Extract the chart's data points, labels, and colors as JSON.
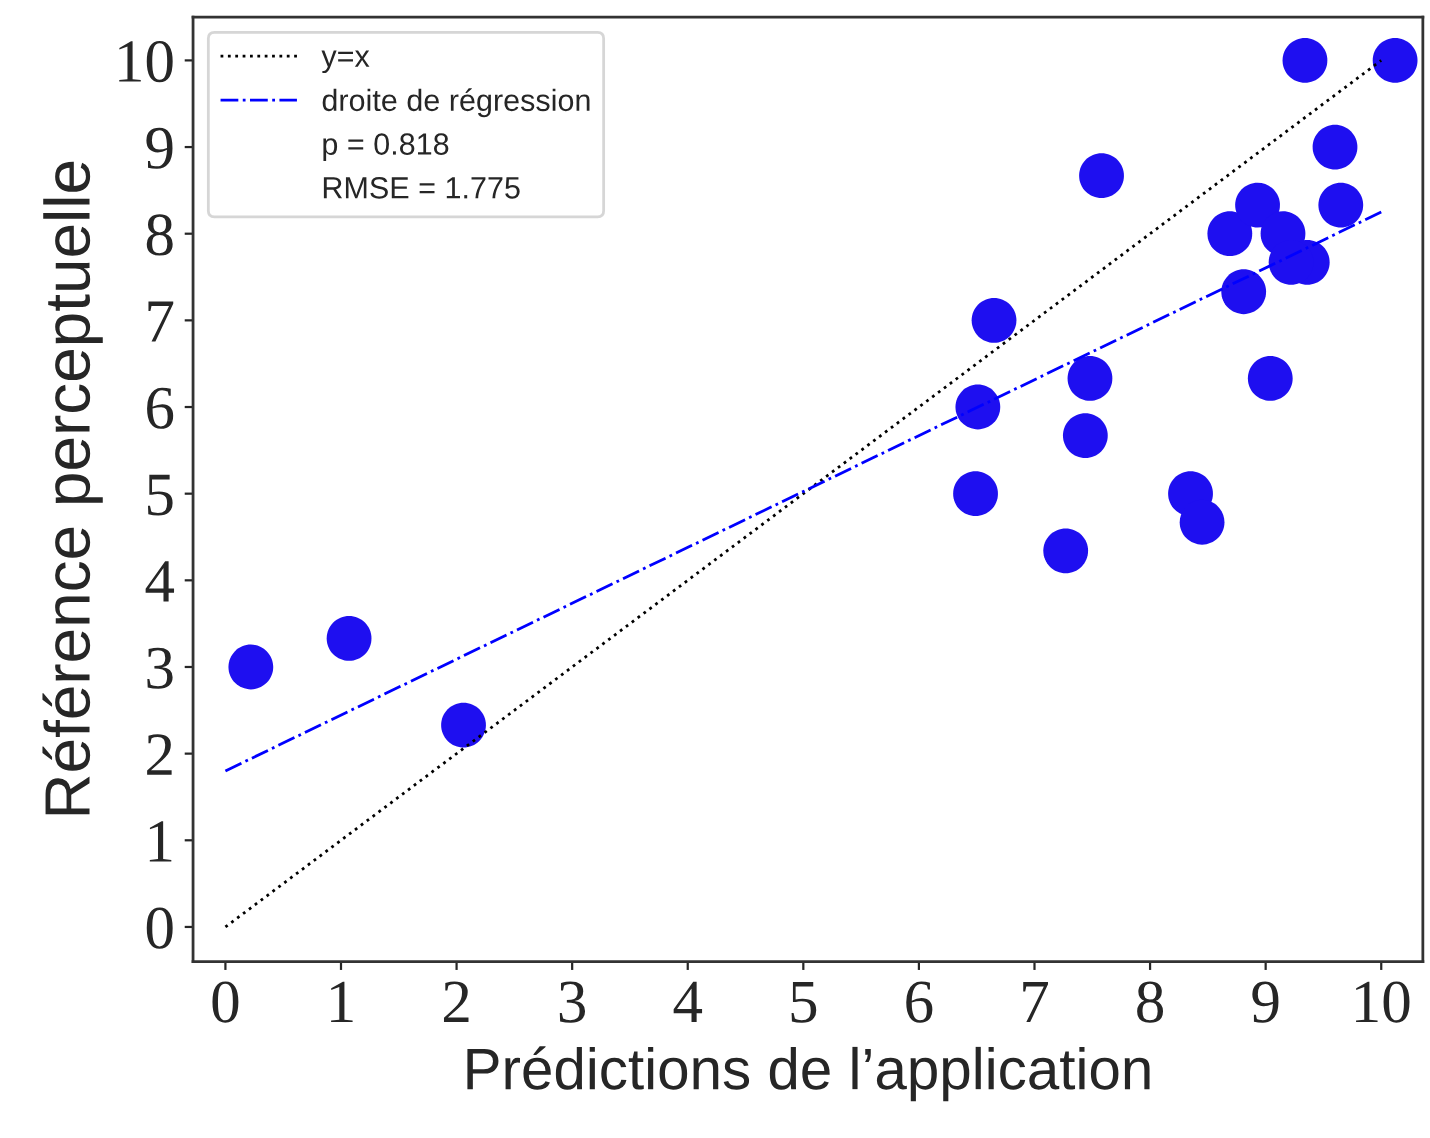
{
  "chart_data": {
    "type": "scatter",
    "xlabel": "Prédictions de l’application",
    "ylabel": "Référence perceptuelle",
    "xlim": [
      -0.28,
      10.36
    ],
    "ylim": [
      -0.4,
      10.5
    ],
    "xticks": [
      0,
      1,
      2,
      3,
      4,
      5,
      6,
      7,
      8,
      9,
      10
    ],
    "yticks": [
      0,
      1,
      2,
      3,
      4,
      5,
      6,
      7,
      8,
      9,
      10
    ],
    "grid": false,
    "legend": "top left",
    "annotations": [
      "p = 0.818",
      "RMSE = 1.775"
    ],
    "series": [
      {
        "marker": "circle",
        "color": "#1e0ff0",
        "x": [
          0.22,
          1.07,
          2.06,
          6.49,
          6.51,
          6.65,
          7.27,
          7.44,
          7.48,
          7.58,
          8.35,
          8.45,
          9.04,
          8.81,
          8.69,
          8.93,
          9.15,
          9.36,
          9.22,
          9.34,
          9.6,
          9.65,
          10.12
        ],
        "values": [
          3.0,
          3.33,
          2.33,
          5.0,
          6.0,
          7.0,
          4.34,
          5.67,
          6.33,
          8.67,
          5.0,
          4.67,
          6.33,
          7.33,
          8.0,
          8.33,
          8.0,
          7.67,
          7.67,
          10.0,
          9.0,
          8.33,
          10.0
        ]
      },
      {
        "type": "line",
        "name": "y=x",
        "color": "#000000",
        "line_style": "dotted",
        "marker": "none",
        "x": [
          0,
          10
        ],
        "values": [
          0,
          10
        ]
      },
      {
        "type": "line",
        "name": "droite de régression",
        "color": "#0000ff",
        "line_style": "dashdot",
        "marker": "none",
        "x": [
          0,
          10
        ],
        "values": [
          1.8,
          8.25
        ]
      }
    ]
  }
}
